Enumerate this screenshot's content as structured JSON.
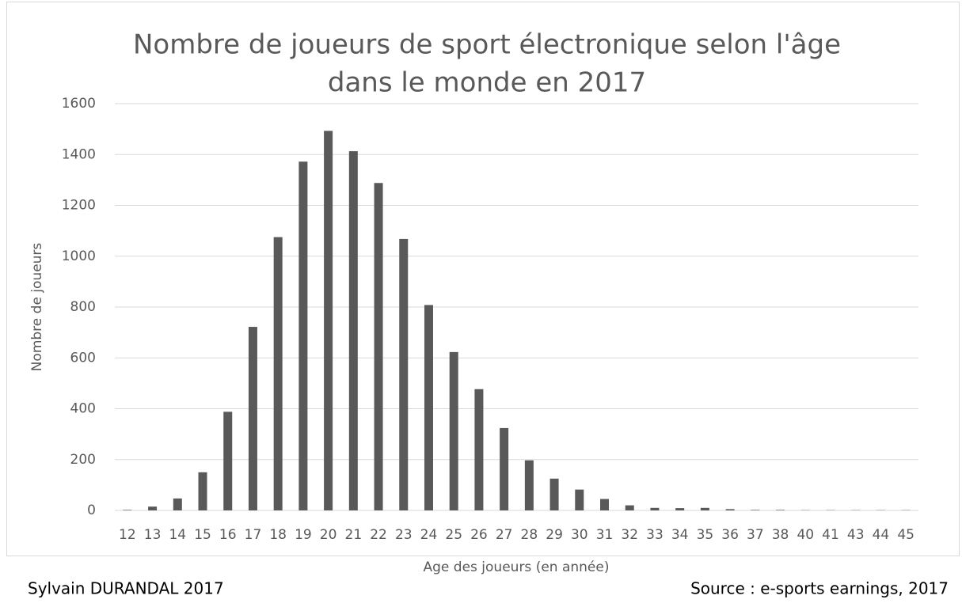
{
  "chart_data": {
    "type": "bar",
    "title": [
      "Nombre de joueurs de sport électronique selon l'âge",
      "dans le monde en 2017"
    ],
    "x_label": "Age des joueurs (en année)",
    "y_label": "Nombre de joueurs",
    "author": "Sylvain DURANDAL 2017",
    "source": "Source : e-sports earnings, 2017",
    "categories": [
      "12",
      "13",
      "14",
      "15",
      "16",
      "17",
      "18",
      "19",
      "20",
      "21",
      "22",
      "23",
      "24",
      "25",
      "26",
      "27",
      "28",
      "29",
      "30",
      "31",
      "32",
      "33",
      "34",
      "35",
      "36",
      "37",
      "38",
      "40",
      "41",
      "43",
      "44",
      "45"
    ],
    "values": [
      2,
      15,
      47,
      150,
      388,
      722,
      1075,
      1372,
      1493,
      1413,
      1288,
      1068,
      808,
      623,
      477,
      324,
      197,
      125,
      82,
      45,
      20,
      10,
      9,
      10,
      5,
      2,
      2,
      1,
      1,
      1,
      1,
      1
    ],
    "color": "#595959",
    "ylim": [
      0,
      1600
    ],
    "yticks": [
      0,
      200,
      400,
      600,
      800,
      1000,
      1200,
      1400,
      1600
    ],
    "grid": true
  }
}
